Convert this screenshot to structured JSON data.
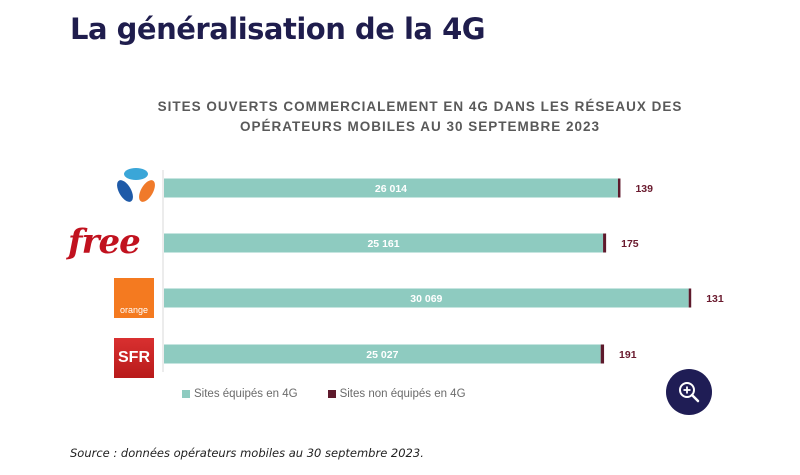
{
  "page": {
    "title": "La généralisation de la 4G",
    "source": "Source : données opérateurs mobiles au 30 septembre 2023."
  },
  "zoom_button": {
    "icon": "zoom-in-icon"
  },
  "logos": [
    {
      "operator": "Bouygues Telecom",
      "icon": "bouygues-logo"
    },
    {
      "operator": "Free",
      "icon": "free-logo",
      "text": "free"
    },
    {
      "operator": "Orange",
      "icon": "orange-logo",
      "text": "orange"
    },
    {
      "operator": "SFR",
      "icon": "sfr-logo",
      "text": "SFR"
    }
  ],
  "colors": {
    "equipped": "#8ecbc0",
    "not_equipped": "#5e1a2c",
    "title": "#1f1d4d",
    "zoom_button": "#1f1d55"
  },
  "chart_data": {
    "type": "bar",
    "orientation": "horizontal",
    "stacked": true,
    "title": "SITES OUVERTS COMMERCIALEMENT EN 4G DANS LES RÉSEAUX DES OPÉRATEURS MOBILES AU 30 SEPTEMBRE 2023",
    "title_lines": [
      "SITES OUVERTS COMMERCIALEMENT EN 4G DANS LES RÉSEAUX DES",
      "OPÉRATEURS MOBILES AU 30 SEPTEMBRE 2023"
    ],
    "categories": [
      "Bouygues Telecom",
      "Free",
      "Orange",
      "SFR"
    ],
    "series": [
      {
        "name": "Sites équipés en 4G",
        "values": [
          26014,
          25161,
          30069,
          25027
        ],
        "labels": [
          "26 014",
          "25 161",
          "30 069",
          "25 027"
        ]
      },
      {
        "name": "Sites non équipés en 4G",
        "values": [
          139,
          175,
          131,
          191
        ],
        "labels": [
          "139",
          "175",
          "131",
          "191"
        ]
      }
    ],
    "xlim": [
      0,
      30200
    ],
    "grid": false,
    "legend_position": "bottom-left"
  }
}
